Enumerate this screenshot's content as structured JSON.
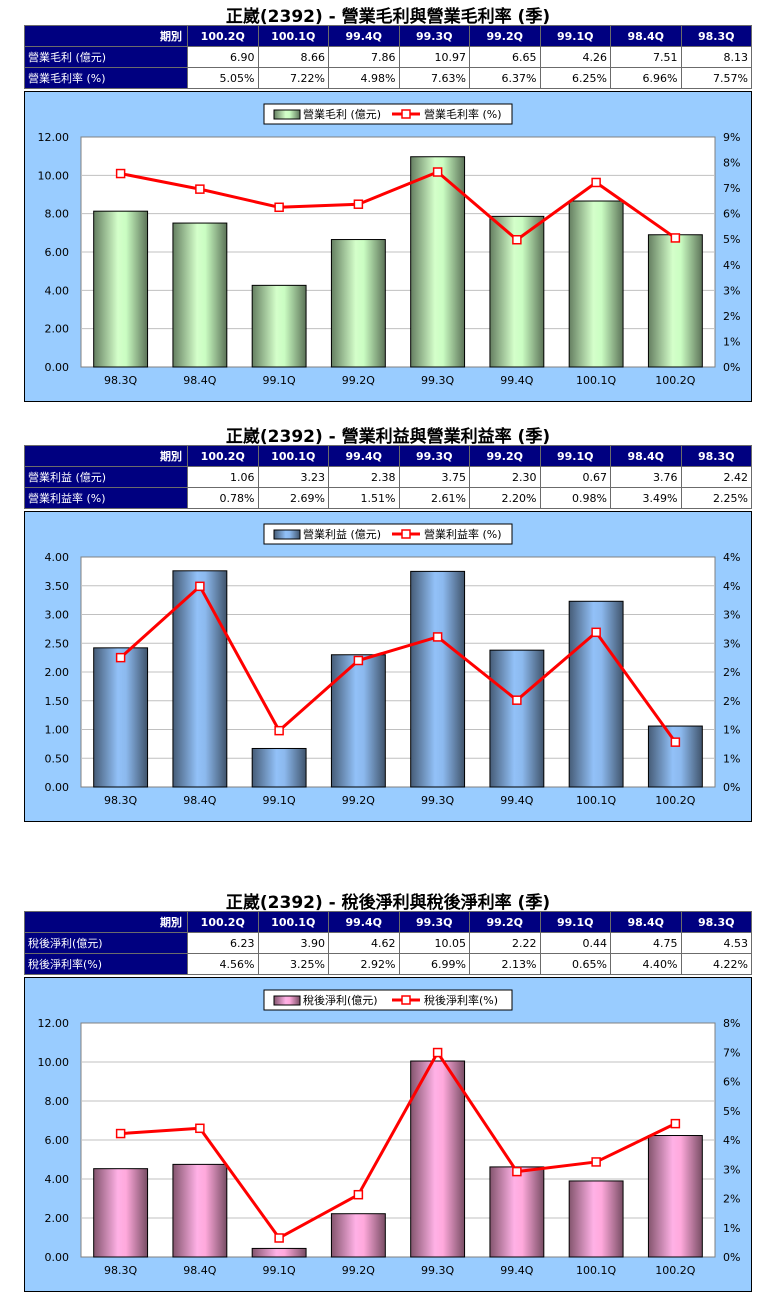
{
  "colors": {
    "header_bg": "#000080",
    "chart_bg": "#99ccff",
    "line": "#ff0000",
    "bar_green": "#b8e6b0",
    "bar_blue": "#7fa8d8",
    "bar_pink": "#f09ac8"
  },
  "sections": [
    {
      "title": "正崴(2392) - 營業毛利與營業毛利率 (季)",
      "table": {
        "header_label": "期別",
        "periods": [
          "100.2Q",
          "100.1Q",
          "99.4Q",
          "99.3Q",
          "99.2Q",
          "99.1Q",
          "98.4Q",
          "98.3Q"
        ],
        "rows": [
          {
            "label": "營業毛利 (億元)",
            "values": [
              "6.90",
              "8.66",
              "7.86",
              "10.97",
              "6.65",
              "4.26",
              "7.51",
              "8.13"
            ]
          },
          {
            "label": "營業毛利率 (%)",
            "values": [
              "5.05%",
              "7.22%",
              "4.98%",
              "7.63%",
              "6.37%",
              "6.25%",
              "6.96%",
              "7.57%"
            ]
          }
        ]
      }
    },
    {
      "title": "正崴(2392) - 營業利益與營業利益率 (季)",
      "table": {
        "header_label": "期別",
        "periods": [
          "100.2Q",
          "100.1Q",
          "99.4Q",
          "99.3Q",
          "99.2Q",
          "99.1Q",
          "98.4Q",
          "98.3Q"
        ],
        "rows": [
          {
            "label": "營業利益 (億元)",
            "values": [
              "1.06",
              "3.23",
              "2.38",
              "3.75",
              "2.30",
              "0.67",
              "3.76",
              "2.42"
            ]
          },
          {
            "label": "營業利益率 (%)",
            "values": [
              "0.78%",
              "2.69%",
              "1.51%",
              "2.61%",
              "2.20%",
              "0.98%",
              "3.49%",
              "2.25%"
            ]
          }
        ]
      }
    },
    {
      "title": "正崴(2392) - 稅後淨利與稅後淨利率 (季)",
      "table": {
        "header_label": "期別",
        "periods": [
          "100.2Q",
          "100.1Q",
          "99.4Q",
          "99.3Q",
          "99.2Q",
          "99.1Q",
          "98.4Q",
          "98.3Q"
        ],
        "rows": [
          {
            "label": "稅後淨利(億元)",
            "values": [
              "6.23",
              "3.90",
              "4.62",
              "10.05",
              "2.22",
              "0.44",
              "4.75",
              "4.53"
            ]
          },
          {
            "label": "稅後淨利率(%)",
            "values": [
              "4.56%",
              "3.25%",
              "2.92%",
              "6.99%",
              "2.13%",
              "0.65%",
              "4.40%",
              "4.22%"
            ]
          }
        ]
      }
    }
  ],
  "chart_data": [
    {
      "type": "bar",
      "categories": [
        "98.3Q",
        "98.4Q",
        "99.1Q",
        "99.2Q",
        "99.3Q",
        "99.4Q",
        "100.1Q",
        "100.2Q"
      ],
      "series": [
        {
          "name": "營業毛利 (億元)",
          "type": "bar",
          "axis": "left",
          "values": [
            8.13,
            7.51,
            4.26,
            6.65,
            10.97,
            7.86,
            8.66,
            6.9
          ]
        },
        {
          "name": "營業毛利率 (%)",
          "type": "line",
          "axis": "right",
          "values": [
            7.57,
            6.96,
            6.25,
            6.37,
            7.63,
            4.98,
            7.22,
            5.05
          ]
        }
      ],
      "ylim": [
        0,
        12
      ],
      "yticks": [
        "0.00",
        "2.00",
        "4.00",
        "6.00",
        "8.00",
        "10.00",
        "12.00"
      ],
      "y2lim": [
        0,
        9
      ],
      "y2ticks": [
        "0%",
        "1%",
        "2%",
        "3%",
        "4%",
        "5%",
        "6%",
        "7%",
        "8%",
        "9%"
      ],
      "legend_position": "top",
      "grid": true
    },
    {
      "type": "bar",
      "categories": [
        "98.3Q",
        "98.4Q",
        "99.1Q",
        "99.2Q",
        "99.3Q",
        "99.4Q",
        "100.1Q",
        "100.2Q"
      ],
      "series": [
        {
          "name": "營業利益 (億元)",
          "type": "bar",
          "axis": "left",
          "values": [
            2.42,
            3.76,
            0.67,
            2.3,
            3.75,
            2.38,
            3.23,
            1.06
          ]
        },
        {
          "name": "營業利益率 (%)",
          "type": "line",
          "axis": "right",
          "values": [
            2.25,
            3.49,
            0.98,
            2.2,
            2.61,
            1.51,
            2.69,
            0.78
          ]
        }
      ],
      "ylim": [
        0,
        4
      ],
      "yticks": [
        "0.00",
        "0.50",
        "1.00",
        "1.50",
        "2.00",
        "2.50",
        "3.00",
        "3.50",
        "4.00"
      ],
      "y2lim": [
        0,
        4
      ],
      "y2ticks": [
        "0%",
        "1%",
        "1%",
        "2%",
        "2%",
        "3%",
        "3%",
        "4%",
        "4%"
      ],
      "legend_position": "top",
      "grid": true
    },
    {
      "type": "bar",
      "categories": [
        "98.3Q",
        "98.4Q",
        "99.1Q",
        "99.2Q",
        "99.3Q",
        "99.4Q",
        "100.1Q",
        "100.2Q"
      ],
      "series": [
        {
          "name": "稅後淨利(億元)",
          "type": "bar",
          "axis": "left",
          "values": [
            4.53,
            4.75,
            0.44,
            2.22,
            10.05,
            4.62,
            3.9,
            6.23
          ]
        },
        {
          "name": "稅後淨利率(%)",
          "type": "line",
          "axis": "right",
          "values": [
            4.22,
            4.4,
            0.65,
            2.13,
            6.99,
            2.92,
            3.25,
            4.56
          ]
        }
      ],
      "ylim": [
        0,
        12
      ],
      "yticks": [
        "0.00",
        "2.00",
        "4.00",
        "6.00",
        "8.00",
        "10.00",
        "12.00"
      ],
      "y2lim": [
        0,
        8
      ],
      "y2ticks": [
        "0%",
        "1%",
        "2%",
        "3%",
        "4%",
        "5%",
        "6%",
        "7%",
        "8%"
      ],
      "legend_position": "top",
      "grid": true
    }
  ]
}
